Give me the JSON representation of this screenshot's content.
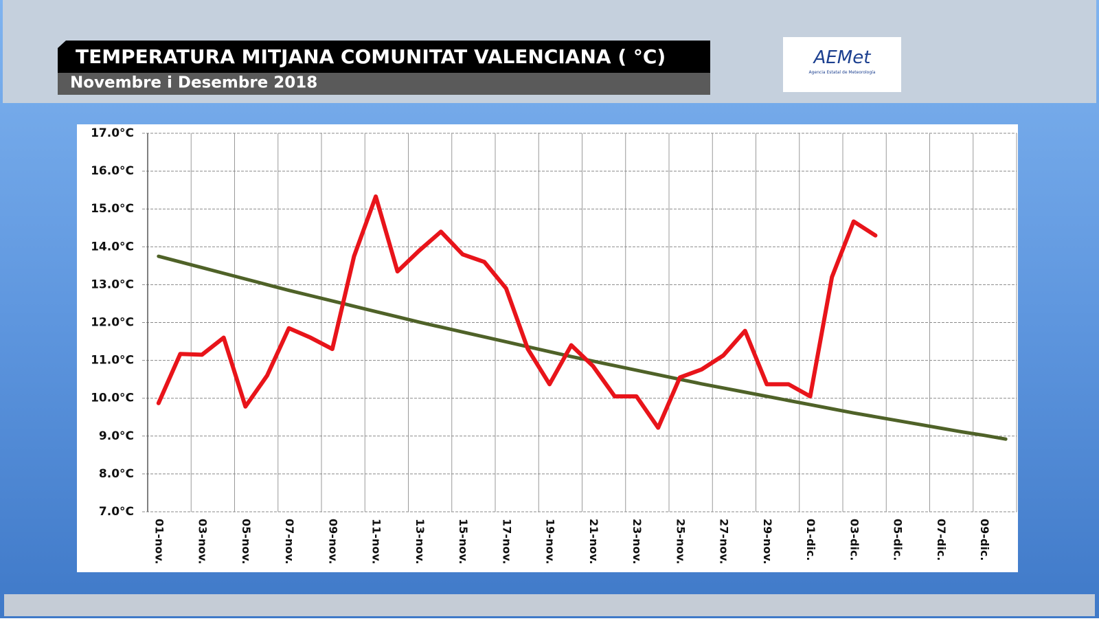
{
  "header": {
    "title": "TEMPERATURA MITJANA COMUNITAT VALENCIANA ( °C)",
    "subtitle": "Novembre i Desembre 2018"
  },
  "logo": {
    "name": "AEMet",
    "caption": "Agencia Estatal de Meteorología"
  },
  "chart_data": {
    "type": "line",
    "categories": [
      "01-nov.",
      null,
      "03-nov.",
      null,
      "05-nov.",
      null,
      "07-nov.",
      null,
      "09-nov.",
      null,
      "11-nov.",
      null,
      "13-nov.",
      null,
      "15-nov.",
      null,
      "17-nov.",
      null,
      "19-nov.",
      null,
      "21-nov.",
      null,
      "23-nov.",
      null,
      "25-nov.",
      null,
      "27-nov.",
      null,
      "29-nov.",
      null,
      "01-dic.",
      null,
      "03-dic.",
      null,
      "05-dic.",
      null,
      "07-dic.",
      null,
      "09-dic.",
      null
    ],
    "series": [
      {
        "color": "#e8141a",
        "values": [
          9.87,
          11.17,
          11.15,
          11.6,
          9.78,
          10.6,
          11.85,
          11.6,
          11.3,
          13.75,
          15.33,
          13.35,
          13.9,
          14.4,
          13.8,
          13.6,
          12.9,
          11.3,
          10.37,
          11.4,
          10.85,
          10.05,
          10.05,
          9.22,
          10.55,
          10.76,
          11.13,
          11.78,
          10.37,
          10.37,
          10.05,
          13.2,
          14.67,
          14.3,
          null,
          null,
          null,
          null,
          null,
          null
        ]
      },
      {
        "color": "#4f6228",
        "values": [
          13.75,
          13.6,
          13.45,
          13.3,
          13.15,
          13.0,
          12.85,
          12.71,
          12.57,
          12.43,
          12.29,
          12.15,
          12.01,
          11.88,
          11.75,
          11.62,
          11.49,
          11.36,
          11.23,
          11.1,
          10.98,
          10.86,
          10.74,
          10.62,
          10.5,
          10.38,
          10.27,
          10.16,
          10.05,
          9.94,
          9.83,
          9.72,
          9.61,
          9.51,
          9.41,
          9.31,
          9.21,
          9.11,
          9.02,
          8.92
        ]
      }
    ],
    "ylim": [
      7,
      17
    ],
    "yticks": [
      {
        "value": 7,
        "label": "7.0°C"
      },
      {
        "value": 8,
        "label": "8.0°C"
      },
      {
        "value": 9,
        "label": "9.0°C"
      },
      {
        "value": 10,
        "label": "10.0°C"
      },
      {
        "value": 11,
        "label": "11.0°C"
      },
      {
        "value": 12,
        "label": "12.0°C"
      },
      {
        "value": 13,
        "label": "13.0°C"
      },
      {
        "value": 14,
        "label": "14.0°C"
      },
      {
        "value": 15,
        "label": "15.0°C"
      },
      {
        "value": 16,
        "label": "16.0°C"
      },
      {
        "value": 17,
        "label": "17.0°C"
      }
    ],
    "grid": true
  }
}
